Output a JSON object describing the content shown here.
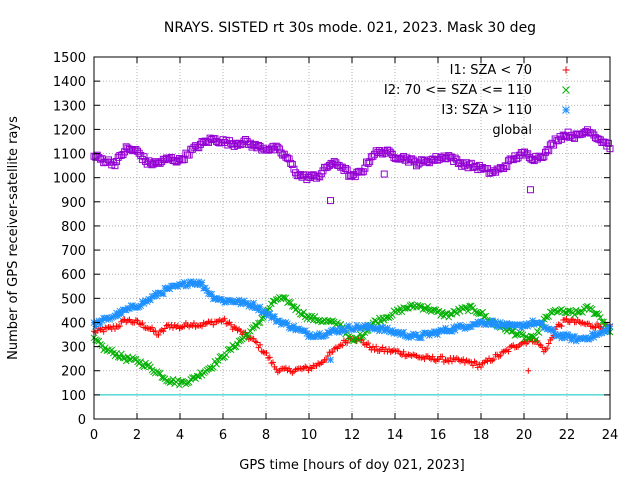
{
  "chart_data": {
    "type": "scatter",
    "title": "NRAYS. SISTED rt 30s mode. 021, 2023. Mask 30 deg",
    "xlabel": "GPS time [hours of doy 021, 2023]",
    "ylabel": "Number of GPS receiver-satellite rays",
    "xlim": [
      0,
      24
    ],
    "ylim": [
      0,
      1500
    ],
    "xticks": [
      0,
      2,
      4,
      6,
      8,
      10,
      12,
      14,
      16,
      18,
      20,
      22,
      24
    ],
    "yticks": [
      0,
      100,
      200,
      300,
      400,
      500,
      600,
      700,
      800,
      900,
      1000,
      1100,
      1200,
      1300,
      1400,
      1500
    ],
    "grid": true,
    "legend_position": "top-right",
    "reference_line": {
      "y": 100,
      "color": "#00c8c8"
    },
    "series": [
      {
        "name": "I1: SZA < 70",
        "marker": "+",
        "marker_glyph": "+",
        "color": "#ff0000",
        "x": [
          0,
          0.5,
          1,
          1.5,
          2,
          2.5,
          3,
          3.5,
          4,
          4.5,
          5,
          5.5,
          6,
          6.5,
          7,
          7.5,
          8,
          8.5,
          9,
          9.5,
          10,
          10.5,
          11,
          11.5,
          12,
          12.5,
          13,
          13.5,
          14,
          14.5,
          15,
          15.5,
          16,
          16.5,
          17,
          17.5,
          18,
          18.5,
          19,
          19.5,
          20,
          20.5,
          21,
          21.5,
          22,
          22.5,
          23,
          23.5,
          24
        ],
        "y": [
          360,
          370,
          380,
          410,
          400,
          380,
          350,
          390,
          380,
          395,
          390,
          400,
          410,
          380,
          350,
          320,
          270,
          205,
          200,
          205,
          210,
          230,
          270,
          310,
          340,
          320,
          290,
          285,
          280,
          270,
          260,
          250,
          250,
          245,
          240,
          235,
          220,
          250,
          270,
          300,
          320,
          330,
          280,
          380,
          410,
          400,
          390,
          385,
          380
        ],
        "outliers": [
          {
            "x": 20.2,
            "y": 200
          }
        ]
      },
      {
        "name": "I2: 70 <= SZA <= 110",
        "marker": "x",
        "marker_glyph": "×",
        "color": "#00b000",
        "x": [
          0,
          0.5,
          1,
          1.5,
          2,
          2.5,
          3,
          3.5,
          4,
          4.5,
          5,
          5.5,
          6,
          6.5,
          7,
          7.5,
          8,
          8.5,
          9,
          9.5,
          10,
          10.5,
          11,
          11.5,
          12,
          12.5,
          13,
          13.5,
          14,
          14.5,
          15,
          15.5,
          16,
          16.5,
          17,
          17.5,
          18,
          18.5,
          19,
          19.5,
          20,
          20.5,
          21,
          21.5,
          22,
          22.5,
          23,
          23.5,
          24
        ],
        "y": [
          330,
          290,
          270,
          250,
          240,
          220,
          190,
          160,
          150,
          160,
          190,
          220,
          260,
          300,
          340,
          380,
          440,
          500,
          490,
          450,
          420,
          410,
          400,
          390,
          320,
          350,
          400,
          420,
          440,
          460,
          470,
          460,
          440,
          430,
          450,
          460,
          440,
          400,
          380,
          360,
          340,
          330,
          420,
          450,
          440,
          440,
          460,
          430,
          360
        ]
      },
      {
        "name": "I3: SZA > 110",
        "marker": "*",
        "marker_glyph": "✱",
        "color": "#1e90ff",
        "x": [
          0,
          0.5,
          1,
          1.5,
          2,
          2.5,
          3,
          3.5,
          4,
          4.5,
          5,
          5.5,
          6,
          6.5,
          7,
          7.5,
          8,
          8.5,
          9,
          9.5,
          10,
          10.5,
          11,
          11.5,
          12,
          12.5,
          13,
          13.5,
          14,
          14.5,
          15,
          15.5,
          16,
          16.5,
          17,
          17.5,
          18,
          18.5,
          19,
          19.5,
          20,
          20.5,
          21,
          21.5,
          22,
          22.5,
          23,
          23.5,
          24
        ],
        "y": [
          390,
          410,
          430,
          450,
          470,
          490,
          520,
          540,
          550,
          570,
          560,
          510,
          490,
          490,
          480,
          470,
          440,
          410,
          390,
          370,
          350,
          350,
          360,
          370,
          380,
          380,
          380,
          370,
          360,
          350,
          340,
          350,
          360,
          370,
          380,
          390,
          400,
          400,
          390,
          380,
          390,
          400,
          380,
          350,
          340,
          330,
          340,
          350,
          380
        ],
        "outliers": [
          {
            "x": 11,
            "y": 245
          }
        ]
      },
      {
        "name": "global",
        "marker": "square",
        "marker_glyph": "□",
        "color": "#9400d3",
        "x": [
          0,
          0.5,
          1,
          1.5,
          2,
          2.5,
          3,
          3.5,
          4,
          4.5,
          5,
          5.5,
          6,
          6.5,
          7,
          7.5,
          8,
          8.5,
          9,
          9.5,
          10,
          10.5,
          11,
          11.5,
          12,
          12.5,
          13,
          13.5,
          14,
          14.5,
          15,
          15.5,
          16,
          16.5,
          17,
          17.5,
          18,
          18.5,
          19,
          19.5,
          20,
          20.5,
          21,
          21.5,
          22,
          22.5,
          23,
          23.5,
          24
        ],
        "y": [
          1090,
          1070,
          1060,
          1120,
          1110,
          1060,
          1060,
          1080,
          1070,
          1110,
          1140,
          1160,
          1150,
          1140,
          1150,
          1130,
          1120,
          1120,
          1080,
          1010,
          1000,
          1010,
          1060,
          1050,
          1000,
          1030,
          1100,
          1110,
          1090,
          1080,
          1060,
          1070,
          1080,
          1090,
          1060,
          1050,
          1040,
          1020,
          1040,
          1080,
          1100,
          1080,
          1100,
          1160,
          1180,
          1170,
          1200,
          1160,
          1130
        ],
        "outliers": [
          {
            "x": 11,
            "y": 905
          },
          {
            "x": 13.5,
            "y": 1015
          },
          {
            "x": 20.3,
            "y": 950
          }
        ]
      }
    ]
  }
}
